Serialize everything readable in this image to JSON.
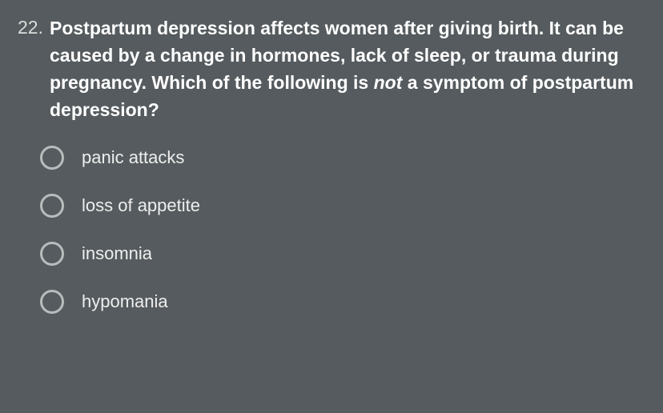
{
  "question": {
    "number": "22.",
    "text_part1": "Postpartum depression affects women after giving birth. It can be caused by a change in hormones, lack of sleep, or trauma during pregnancy. Which of the following is ",
    "text_emph": "not",
    "text_part2": " a symptom of postpartum depression?"
  },
  "options": [
    {
      "label": "panic attacks"
    },
    {
      "label": "loss of appetite"
    },
    {
      "label": "insomnia"
    },
    {
      "label": "hypomania"
    }
  ],
  "styling": {
    "background_color": "#555b5e",
    "text_color": "#e8e8e8",
    "question_color": "#ffffff",
    "number_color": "#dcdcdc",
    "radio_border_color": "#b8bcbd",
    "question_fontsize": 23,
    "option_fontsize": 22,
    "radio_diameter": 30,
    "radio_border_width": 3
  }
}
